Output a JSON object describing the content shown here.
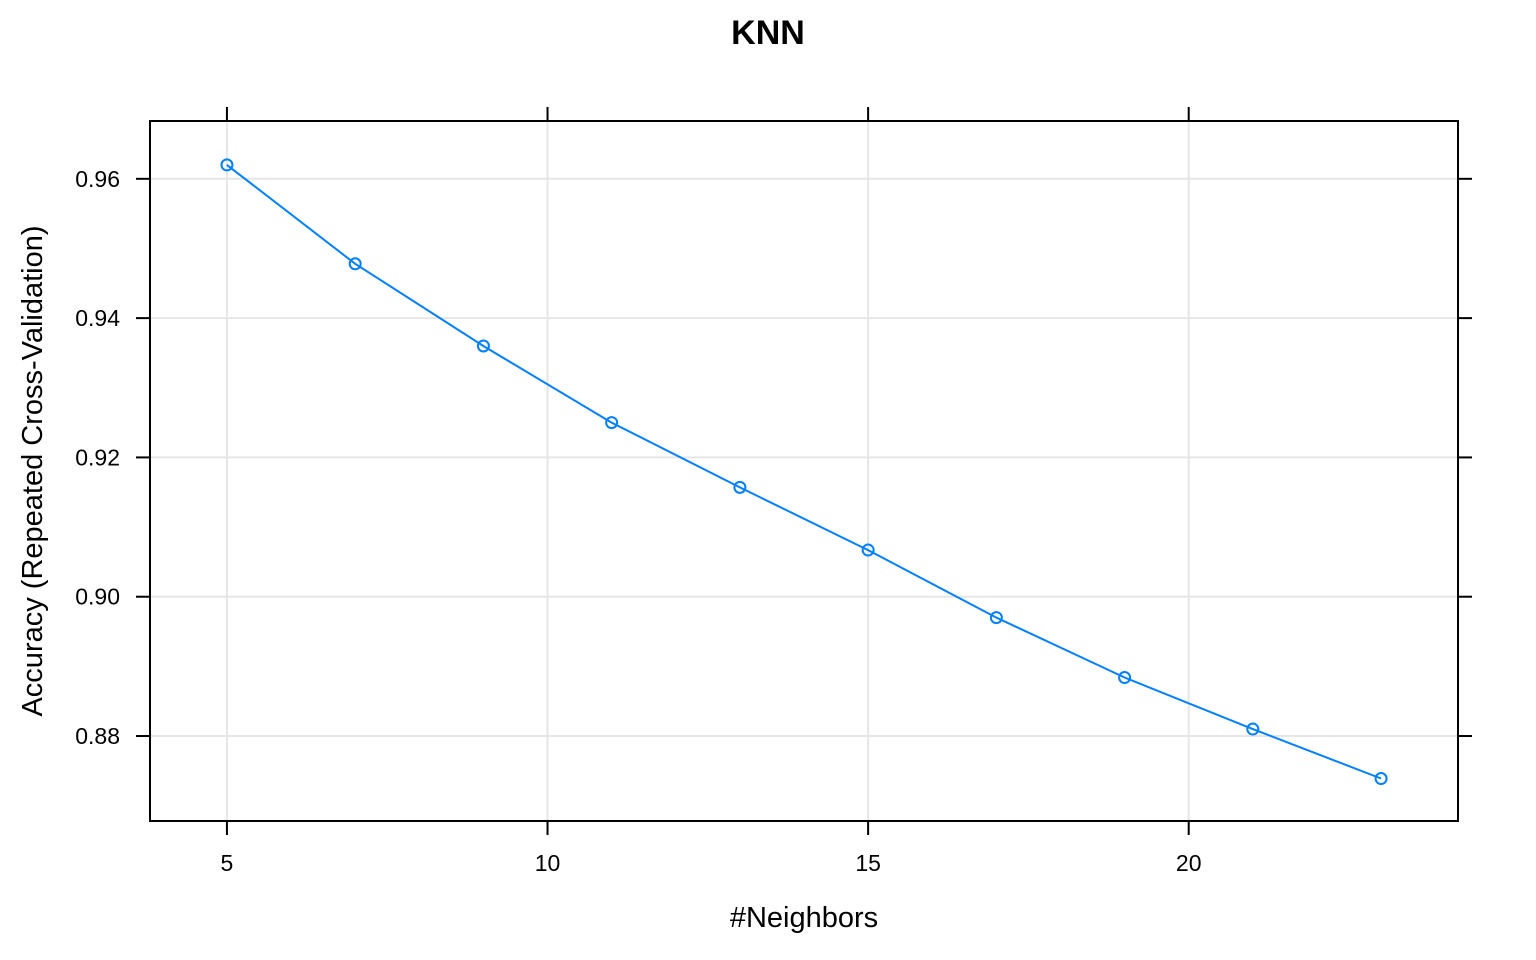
{
  "chart_data": {
    "type": "line",
    "title": "KNN",
    "xlabel": "#Neighbors",
    "ylabel": "Accuracy (Repeated Cross-Validation)",
    "xlim": [
      3.8,
      24.2
    ],
    "ylim": [
      0.8678,
      0.9683
    ],
    "x_ticks": [
      5,
      10,
      15,
      20
    ],
    "x_tick_labels": [
      "5",
      "10",
      "15",
      "20"
    ],
    "y_ticks": [
      0.88,
      0.9,
      0.92,
      0.94,
      0.96
    ],
    "y_tick_labels": [
      "0.88",
      "0.90",
      "0.92",
      "0.94",
      "0.96"
    ],
    "grid": true,
    "series": [
      {
        "color": "#0080ff",
        "marker": "open-circle",
        "x": [
          5,
          7,
          9,
          11,
          13,
          15,
          17,
          19,
          21,
          23
        ],
        "y": [
          0.962,
          0.9478,
          0.936,
          0.925,
          0.9157,
          0.9067,
          0.897,
          0.8884,
          0.881,
          0.8739
        ]
      }
    ]
  }
}
